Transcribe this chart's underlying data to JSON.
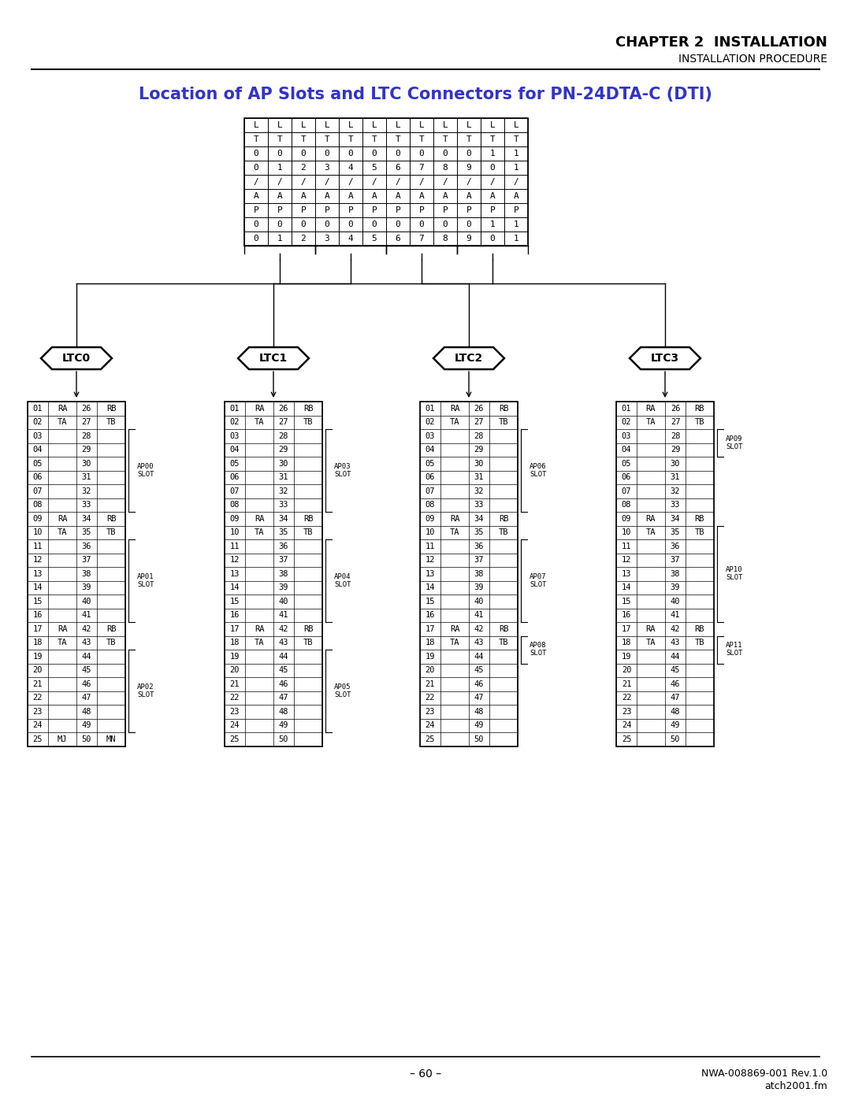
{
  "title": "Location of AP Slots and LTC Connectors for PN-24DTA-C (DTI)",
  "chapter_line1": "CHAPTER 2  INSTALLATION",
  "chapter_line2": "INSTALLATION PROCEDURE",
  "footer_left": "– 60 –",
  "footer_right1": "NWA-008869-001 Rev.1.0",
  "footer_right2": "atch2001.fm",
  "ltc_labels": [
    "LTC0",
    "LTC1",
    "LTC2",
    "LTC3"
  ],
  "rows": [
    [
      "01",
      "RA",
      "26",
      "RB"
    ],
    [
      "02",
      "TA",
      "27",
      "TB"
    ],
    [
      "03",
      "",
      "28",
      ""
    ],
    [
      "04",
      "",
      "29",
      ""
    ],
    [
      "05",
      "",
      "30",
      ""
    ],
    [
      "06",
      "",
      "31",
      ""
    ],
    [
      "07",
      "",
      "32",
      ""
    ],
    [
      "08",
      "",
      "33",
      ""
    ],
    [
      "09",
      "RA",
      "34",
      "RB"
    ],
    [
      "10",
      "TA",
      "35",
      "TB"
    ],
    [
      "11",
      "",
      "36",
      ""
    ],
    [
      "12",
      "",
      "37",
      ""
    ],
    [
      "13",
      "",
      "38",
      ""
    ],
    [
      "14",
      "",
      "39",
      ""
    ],
    [
      "15",
      "",
      "40",
      ""
    ],
    [
      "16",
      "",
      "41",
      ""
    ],
    [
      "17",
      "RA",
      "42",
      "RB"
    ],
    [
      "18",
      "TA",
      "43",
      "TB"
    ],
    [
      "19",
      "",
      "44",
      ""
    ],
    [
      "20",
      "",
      "45",
      ""
    ],
    [
      "21",
      "",
      "46",
      ""
    ],
    [
      "22",
      "",
      "47",
      ""
    ],
    [
      "23",
      "",
      "48",
      ""
    ],
    [
      "24",
      "",
      "49",
      ""
    ],
    [
      "25",
      "MJ",
      "50",
      "MN"
    ]
  ],
  "bg_color": "#ffffff",
  "text_color": "#000000",
  "title_color": "#3333cc",
  "grid_color": "#000000"
}
